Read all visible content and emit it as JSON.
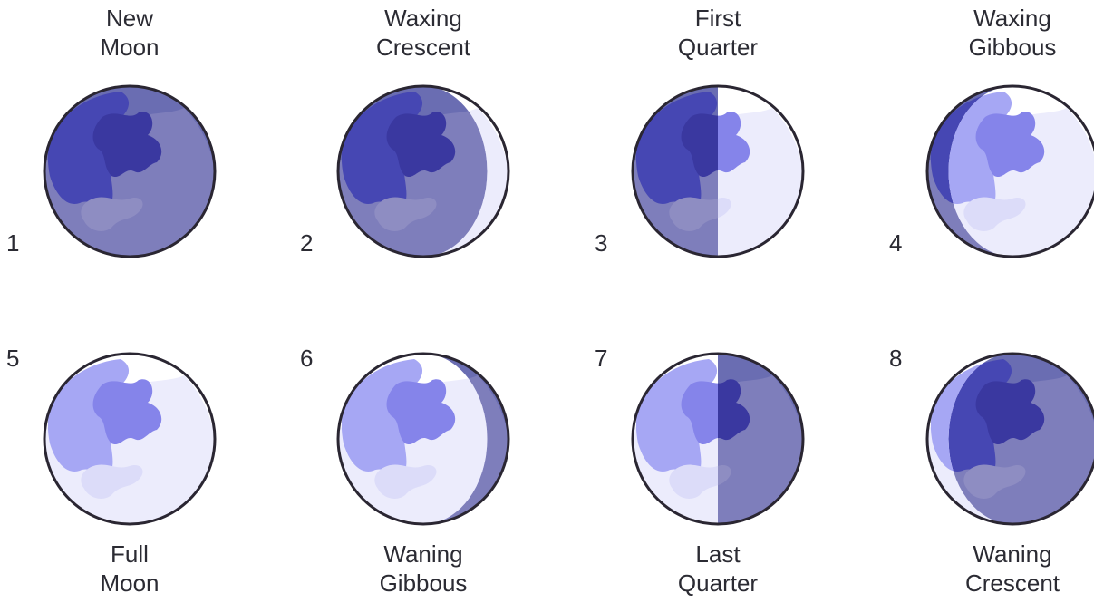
{
  "colors": {
    "dark_base": "#6a6db2",
    "dark_mare": "#4647b3",
    "dark_deep": "#3a38a0",
    "dark_highland": "#8e8dc2",
    "light_base": "#ffffff",
    "light_mare": "#a6a7f4",
    "light_deep": "#8584ea",
    "light_highland": "#dcdcf9",
    "outline": "#2a2632",
    "text": "#2b2b33"
  },
  "phases": [
    {
      "number": "1",
      "name_line1": "New",
      "name_line2": "Moon",
      "lit": "none"
    },
    {
      "number": "2",
      "name_line1": "Waxing",
      "name_line2": "Crescent",
      "lit": "waxing-crescent"
    },
    {
      "number": "3",
      "name_line1": "First",
      "name_line2": "Quarter",
      "lit": "first-quarter"
    },
    {
      "number": "4",
      "name_line1": "Waxing",
      "name_line2": "Gibbous",
      "lit": "waxing-gibbous"
    },
    {
      "number": "5",
      "name_line1": "Full",
      "name_line2": "Moon",
      "lit": "full"
    },
    {
      "number": "6",
      "name_line1": "Waning",
      "name_line2": "Gibbous",
      "lit": "waning-gibbous"
    },
    {
      "number": "7",
      "name_line1": "Last",
      "name_line2": "Quarter",
      "lit": "last-quarter"
    },
    {
      "number": "8",
      "name_line1": "Waning",
      "name_line2": "Crescent",
      "lit": "waning-crescent"
    }
  ]
}
